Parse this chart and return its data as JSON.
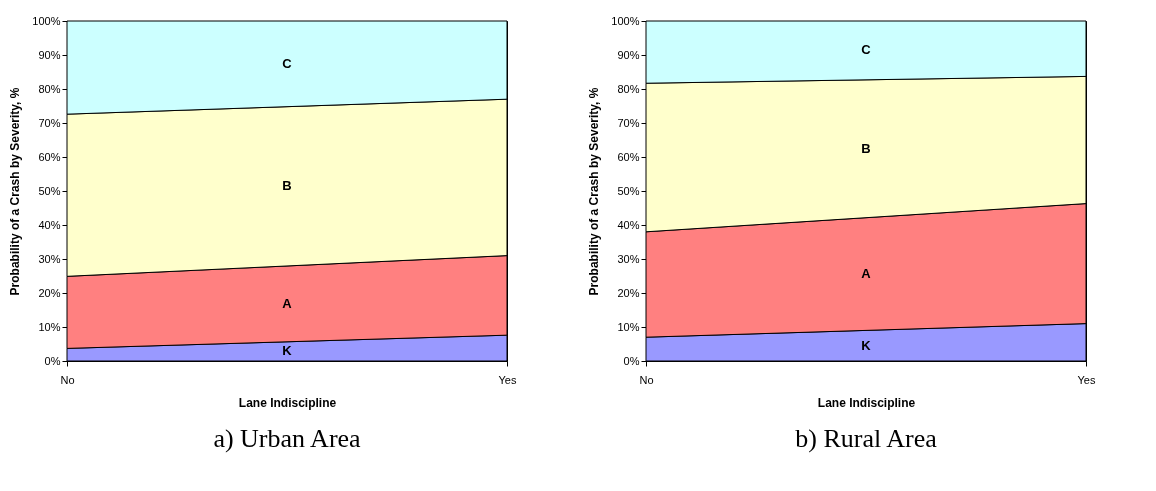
{
  "chart_data": [
    {
      "type": "area",
      "stacked": true,
      "title": "a) Urban Area",
      "xlabel": "Lane Indiscipline",
      "ylabel": "Probability of a Crash by Severity, %",
      "categories": [
        "No",
        "Yes"
      ],
      "ylim": [
        0,
        100
      ],
      "yticks": [
        {
          "value": 0,
          "label": "0%"
        },
        {
          "value": 10,
          "label": "10%"
        },
        {
          "value": 20,
          "label": "20%"
        },
        {
          "value": 30,
          "label": "30%"
        },
        {
          "value": 40,
          "label": "40%"
        },
        {
          "value": 50,
          "label": "50%"
        },
        {
          "value": 60,
          "label": "60%"
        },
        {
          "value": 70,
          "label": "70%"
        },
        {
          "value": 80,
          "label": "80%"
        },
        {
          "value": 90,
          "label": "90%"
        },
        {
          "value": 100,
          "label": "100%"
        }
      ],
      "grid": false,
      "series": [
        {
          "name": "K",
          "color": "#9999ff",
          "values": [
            3.7,
            7.6
          ]
        },
        {
          "name": "A",
          "color": "#ff8080",
          "values": [
            21.2,
            23.4
          ]
        },
        {
          "name": "B",
          "color": "#ffffcc",
          "values": [
            47.7,
            46
          ]
        },
        {
          "name": "C",
          "color": "#ccffff",
          "values": [
            27.4,
            23
          ]
        }
      ]
    },
    {
      "type": "area",
      "stacked": true,
      "title": "b) Rural Area",
      "xlabel": "Lane Indiscipline",
      "ylabel": "Probability of a Crash by Severity, %",
      "categories": [
        "No",
        "Yes"
      ],
      "ylim": [
        0,
        100
      ],
      "yticks": [
        {
          "value": 0,
          "label": "0%"
        },
        {
          "value": 10,
          "label": "10%"
        },
        {
          "value": 20,
          "label": "20%"
        },
        {
          "value": 30,
          "label": "30%"
        },
        {
          "value": 40,
          "label": "40%"
        },
        {
          "value": 50,
          "label": "50%"
        },
        {
          "value": 60,
          "label": "60%"
        },
        {
          "value": 70,
          "label": "70%"
        },
        {
          "value": 80,
          "label": "80%"
        },
        {
          "value": 90,
          "label": "90%"
        },
        {
          "value": 100,
          "label": "100%"
        }
      ],
      "grid": false,
      "series": [
        {
          "name": "K",
          "color": "#9999ff",
          "values": [
            7,
            11
          ]
        },
        {
          "name": "A",
          "color": "#ff8080",
          "values": [
            31,
            35.3
          ]
        },
        {
          "name": "B",
          "color": "#ffffcc",
          "values": [
            43.7,
            37.4
          ]
        },
        {
          "name": "C",
          "color": "#ccffff",
          "values": [
            18.3,
            16.3
          ]
        }
      ]
    }
  ]
}
